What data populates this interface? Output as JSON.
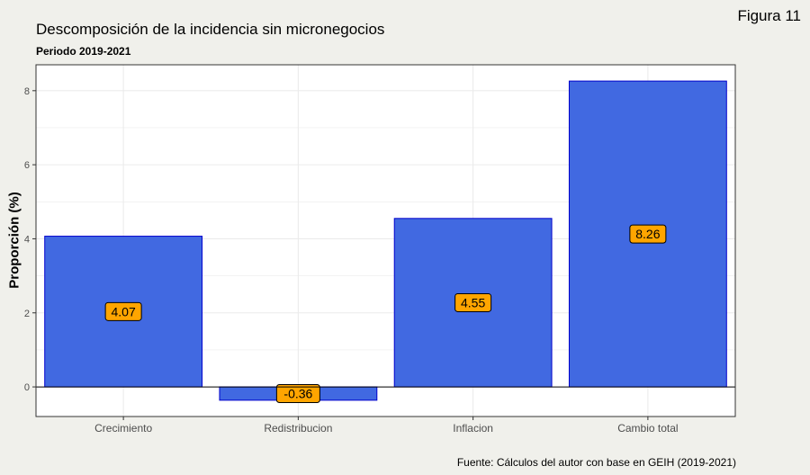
{
  "figure_label": "Figura 11",
  "caption": "Fuente: Cálculos del autor con base en GEIH (2019-2021)",
  "colors": {
    "bar_fill": "#4169e1",
    "bar_stroke": "#0000cd",
    "label_fill": "#ffa500",
    "panel_background": "#ffffff",
    "page_background": "#f0f0eb",
    "grid": "#ebebeb"
  },
  "chart_data": {
    "type": "bar",
    "title": "Descomposición de la incidencia sin micronegocios",
    "subtitle": "Periodo 2019-2021",
    "xlabel": "",
    "ylabel": "Proporción (%)",
    "categories": [
      "Crecimiento",
      "Redistribucion",
      "Inflacion",
      "Cambio total"
    ],
    "values": [
      4.07,
      -0.36,
      4.55,
      8.26
    ],
    "data_labels": [
      "4.07",
      "-0.36",
      "4.55",
      "8.26"
    ],
    "ylim": [
      -0.8,
      8.7
    ],
    "yticks": [
      0,
      2,
      4,
      6,
      8
    ],
    "grid": true,
    "zero_line": true
  }
}
